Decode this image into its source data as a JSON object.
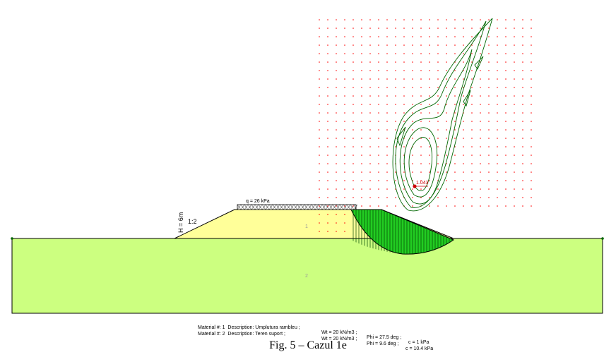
{
  "figure": {
    "caption": "Fig. 5 – Cazul 1e",
    "load_label": "q = 26 kPa",
    "slope_ratio": "1:2",
    "height_label": "H = 6m",
    "factor_of_safety": "1.043",
    "region_labels": {
      "fill": "1",
      "foundation": "2"
    }
  },
  "colors": {
    "foundation": "#ccff80",
    "embankment": "#ffff99",
    "slip_mass": "#22cc22",
    "grid_points": "#ff0000",
    "contours": "#006600",
    "center": "#cc0000"
  },
  "materials": [
    {
      "prefix": "Material #: 1  Description: Umplutura rambleu ;",
      "wt": "Wt = 20 kN/m3 ;",
      "phi": "Phi = 27.5 deg ;",
      "c": "c = 1 kPa"
    },
    {
      "prefix": "Material #: 2  Description: Teren suport ;",
      "wt": "Wt = 20 kN/m3 ;",
      "phi": "Phi = 9.6 deg ;",
      "c": "c = 10.4 kPa"
    }
  ]
}
